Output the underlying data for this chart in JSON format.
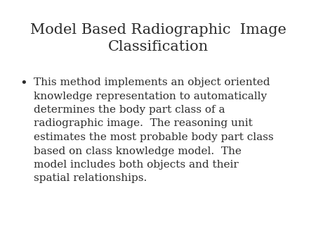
{
  "title_line1": "Model Based Radiographic  Image",
  "title_line2": "Classification",
  "title_fontsize": 15,
  "title_color": "#2b2b2b",
  "body_fontsize": 11,
  "body_color": "#2b2b2b",
  "background_color": "#ffffff",
  "bullet": "•",
  "body_lines": [
    "This method implements an object oriented",
    "knowledge representation to automatically",
    "determines the body part class of a",
    "radiographic image.  The reasoning unit",
    "estimates the most probable body part class",
    "based on class knowledge model.  The",
    "model includes both objects and their",
    "spatial relationships."
  ]
}
